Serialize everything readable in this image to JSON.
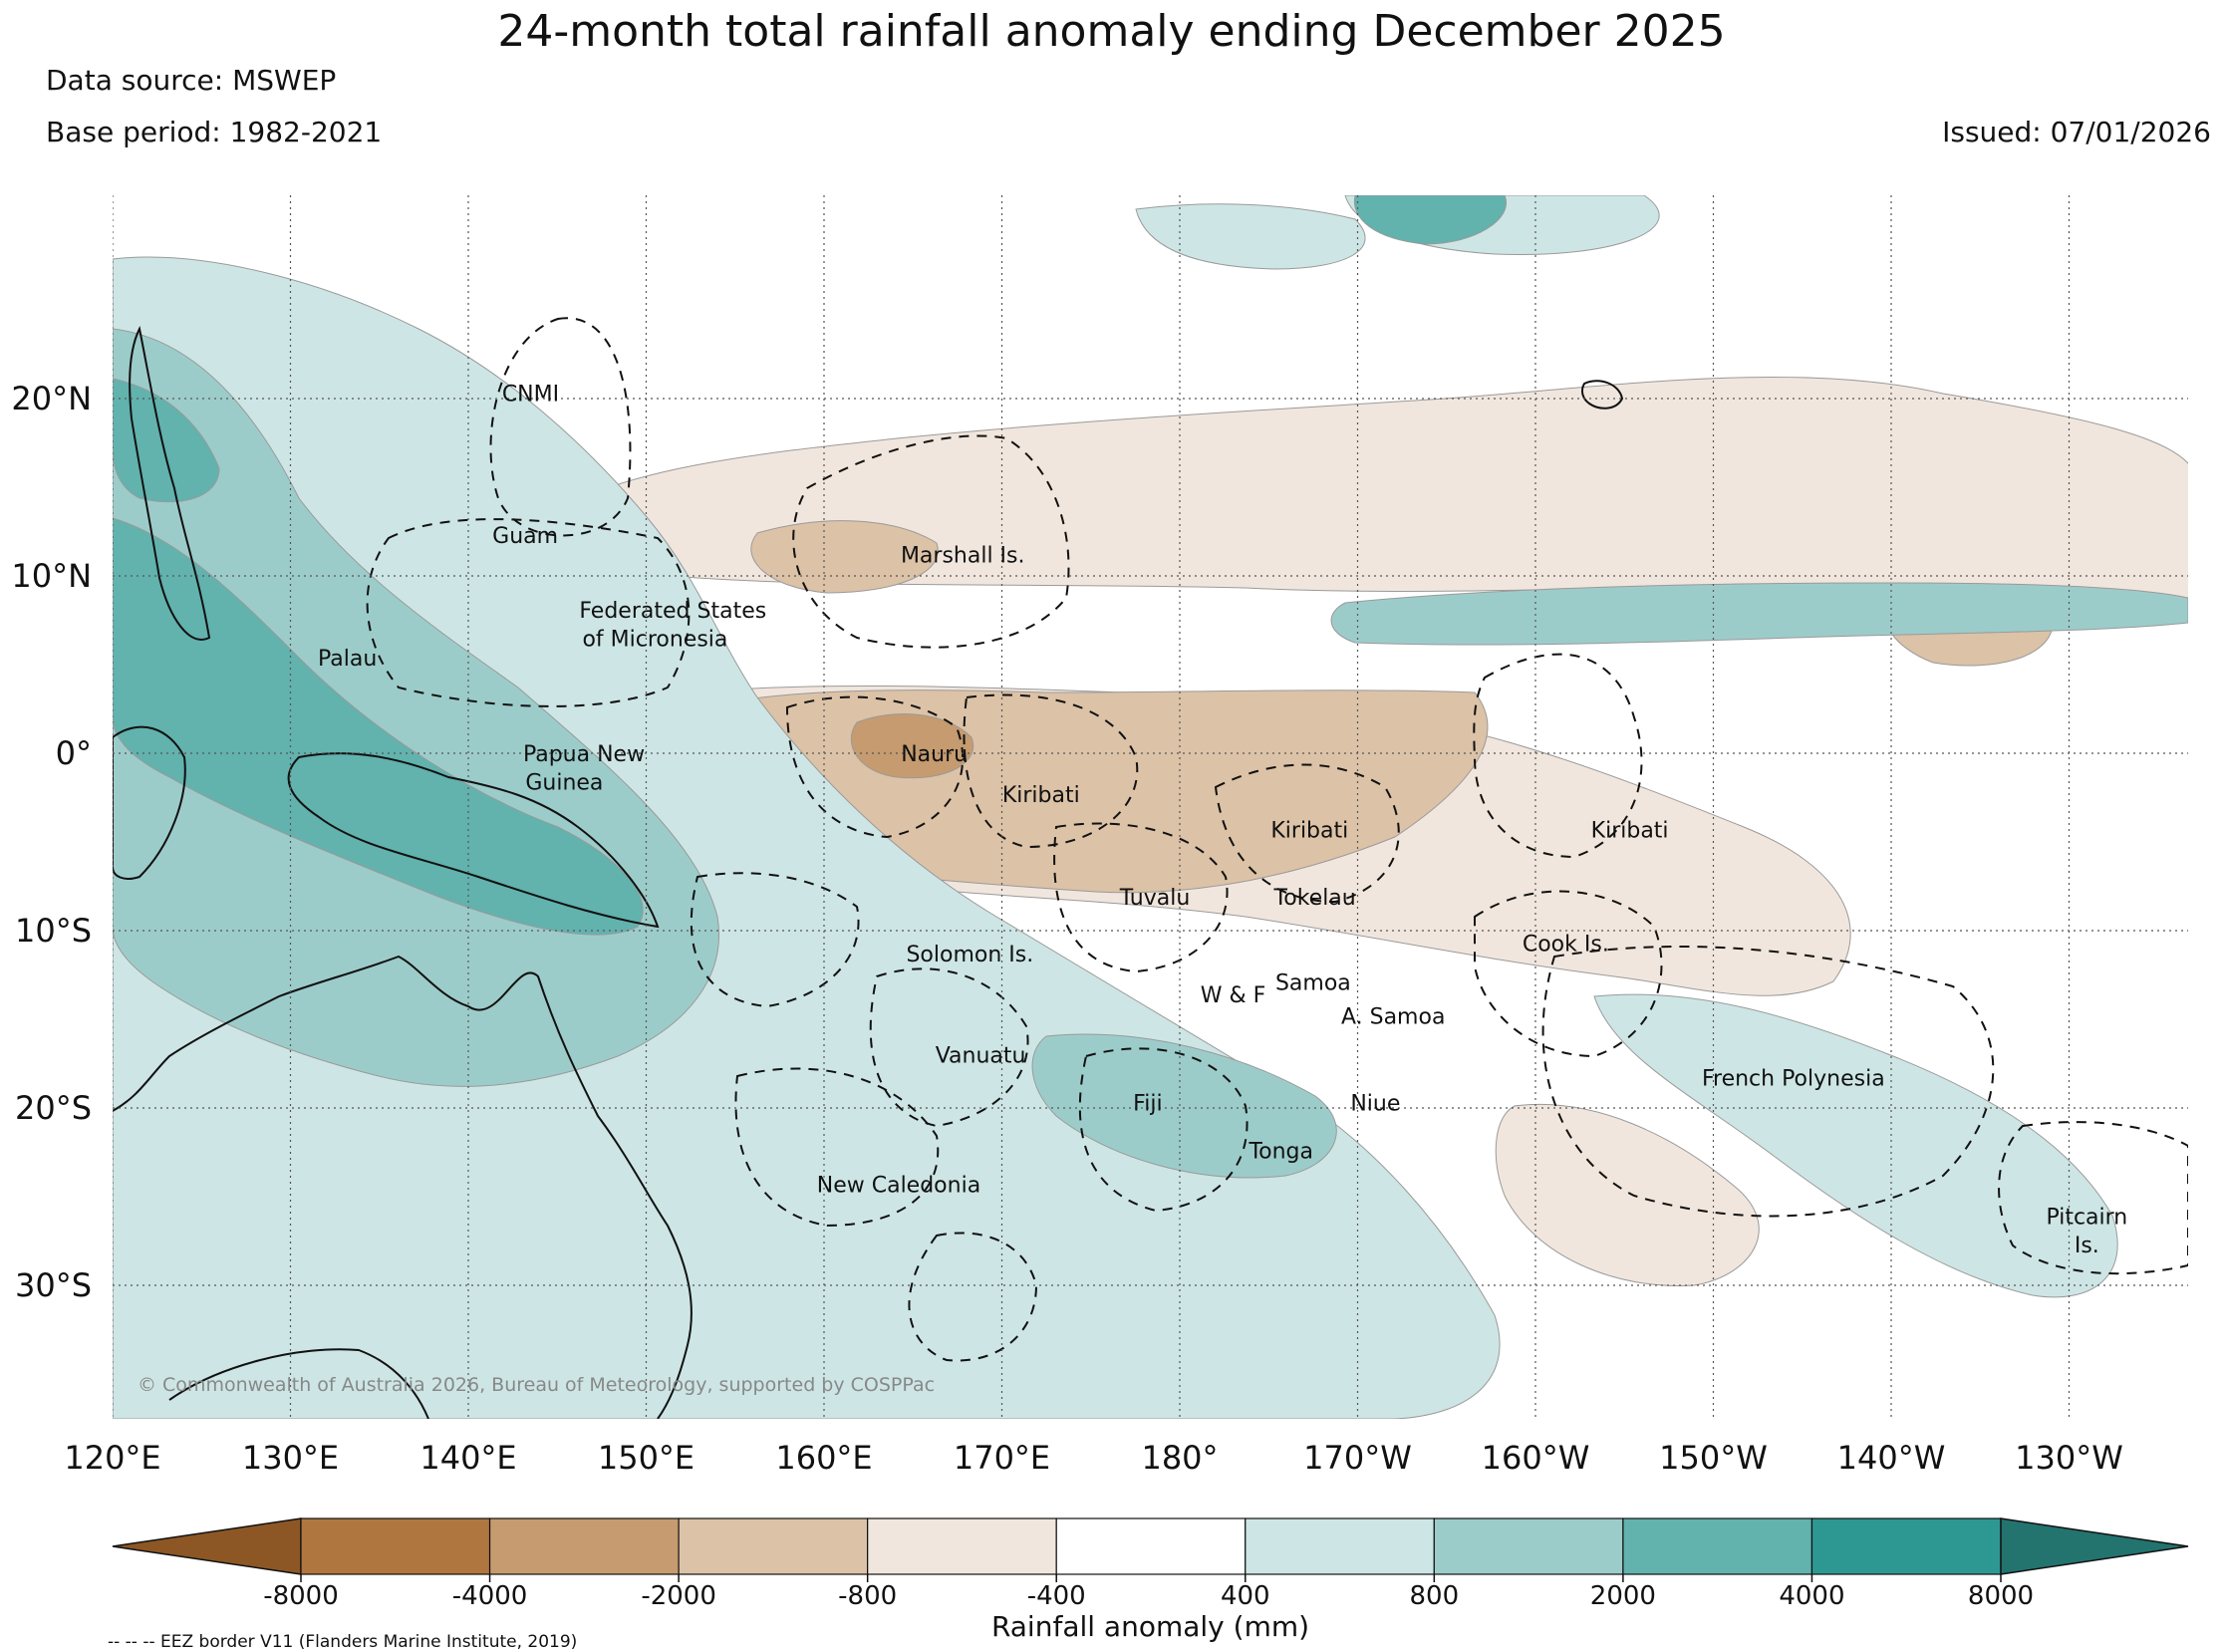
{
  "title": "24-month total rainfall anomaly ending December 2025",
  "data_source": "Data source: MSWEP",
  "base_period": "Base period: 1982-2021",
  "issued": "Issued: 07/01/2026",
  "copyright": "© Commonwealth of Australia 2026, Bureau of Meteorology, supported by COSPPac",
  "eez_note": "-- -- -- EEZ border V11 (Flanders Marine Institute, 2019)",
  "lon_ticks": [
    {
      "lon": 120,
      "label": "120°E"
    },
    {
      "lon": 130,
      "label": "130°E"
    },
    {
      "lon": 140,
      "label": "140°E"
    },
    {
      "lon": 150,
      "label": "150°E"
    },
    {
      "lon": 160,
      "label": "160°E"
    },
    {
      "lon": 170,
      "label": "170°E"
    },
    {
      "lon": 180,
      "label": "180°"
    },
    {
      "lon": 190,
      "label": "170°W"
    },
    {
      "lon": 200,
      "label": "160°W"
    },
    {
      "lon": 210,
      "label": "150°W"
    },
    {
      "lon": 220,
      "label": "140°W"
    },
    {
      "lon": 230,
      "label": "130°W"
    }
  ],
  "lat_ticks": [
    {
      "lat": 20,
      "label": "20°N"
    },
    {
      "lat": 10,
      "label": "10°N"
    },
    {
      "lat": 0,
      "label": "0°"
    },
    {
      "lat": -10,
      "label": "10°S"
    },
    {
      "lat": -20,
      "label": "20°S"
    },
    {
      "lat": -30,
      "label": "30°S"
    }
  ],
  "regions": [
    {
      "name": "CNMI",
      "lon": 143.5,
      "lat": 20.3
    },
    {
      "name": "Guam",
      "lon": 143.2,
      "lat": 12.3
    },
    {
      "name": "Marshall Is.",
      "lon": 167.8,
      "lat": 11.2
    },
    {
      "name": "Federated States",
      "lon": 151.5,
      "lat": 8.1
    },
    {
      "name": "of Micronesia",
      "lon": 150.5,
      "lat": 6.5
    },
    {
      "name": "Palau",
      "lon": 133.2,
      "lat": 5.4
    },
    {
      "name": "Papua New",
      "lon": 146.5,
      "lat": 0.0
    },
    {
      "name": "Guinea",
      "lon": 145.4,
      "lat": -1.6
    },
    {
      "name": "Nauru",
      "lon": 166.2,
      "lat": 0.0
    },
    {
      "name": "Kiribati",
      "lon": 172.2,
      "lat": -2.3
    },
    {
      "name": "Kiribati",
      "lon": 187.3,
      "lat": -4.3
    },
    {
      "name": "Kiribati",
      "lon": 205.3,
      "lat": -4.3
    },
    {
      "name": "Tuvalu",
      "lon": 178.6,
      "lat": -8.1
    },
    {
      "name": "Tokelau",
      "lon": 187.6,
      "lat": -8.1
    },
    {
      "name": "Cook Is.",
      "lon": 201.7,
      "lat": -10.7
    },
    {
      "name": "Solomon Is.",
      "lon": 168.2,
      "lat": -11.3
    },
    {
      "name": "Samoa",
      "lon": 187.5,
      "lat": -12.9
    },
    {
      "name": "W & F",
      "lon": 183.0,
      "lat": -13.6
    },
    {
      "name": "A. Samoa",
      "lon": 192.0,
      "lat": -14.8
    },
    {
      "name": "Vanuatu",
      "lon": 168.8,
      "lat": -17.0
    },
    {
      "name": "Fiji",
      "lon": 178.2,
      "lat": -19.7
    },
    {
      "name": "Niue",
      "lon": 191.0,
      "lat": -19.7
    },
    {
      "name": "Tonga",
      "lon": 185.7,
      "lat": -22.4
    },
    {
      "name": "New Caledonia",
      "lon": 164.2,
      "lat": -24.3
    },
    {
      "name": "French Polynesia",
      "lon": 214.5,
      "lat": -18.3
    },
    {
      "name": "Pitcairn",
      "lon": 231.0,
      "lat": -26.1
    },
    {
      "name": "Is.",
      "lon": 231.0,
      "lat": -27.7
    }
  ],
  "colorbar": {
    "title": "Rainfall anomaly (mm)",
    "labels": [
      "-8000",
      "-4000",
      "-2000",
      "-800",
      "-400",
      "400",
      "800",
      "2000",
      "4000",
      "8000"
    ],
    "colors": [
      "#8c5724",
      "#b07640",
      "#c59b6f",
      "#dcc2a6",
      "#f1e6dd",
      "#ffffff",
      "#cde6e5",
      "#9cccca",
      "#62b2ae",
      "#2d9892",
      "#23736f"
    ]
  },
  "anomaly_regions": [
    {
      "level": "dry1",
      "color": "#f1e6dd"
    },
    {
      "level": "dry2",
      "color": "#dcc2a6"
    },
    {
      "level": "dry3",
      "color": "#c59b6f"
    },
    {
      "level": "wet1",
      "color": "#cde6e5"
    },
    {
      "level": "wet2",
      "color": "#9cccca"
    },
    {
      "level": "wet3",
      "color": "#62b2ae"
    }
  ]
}
